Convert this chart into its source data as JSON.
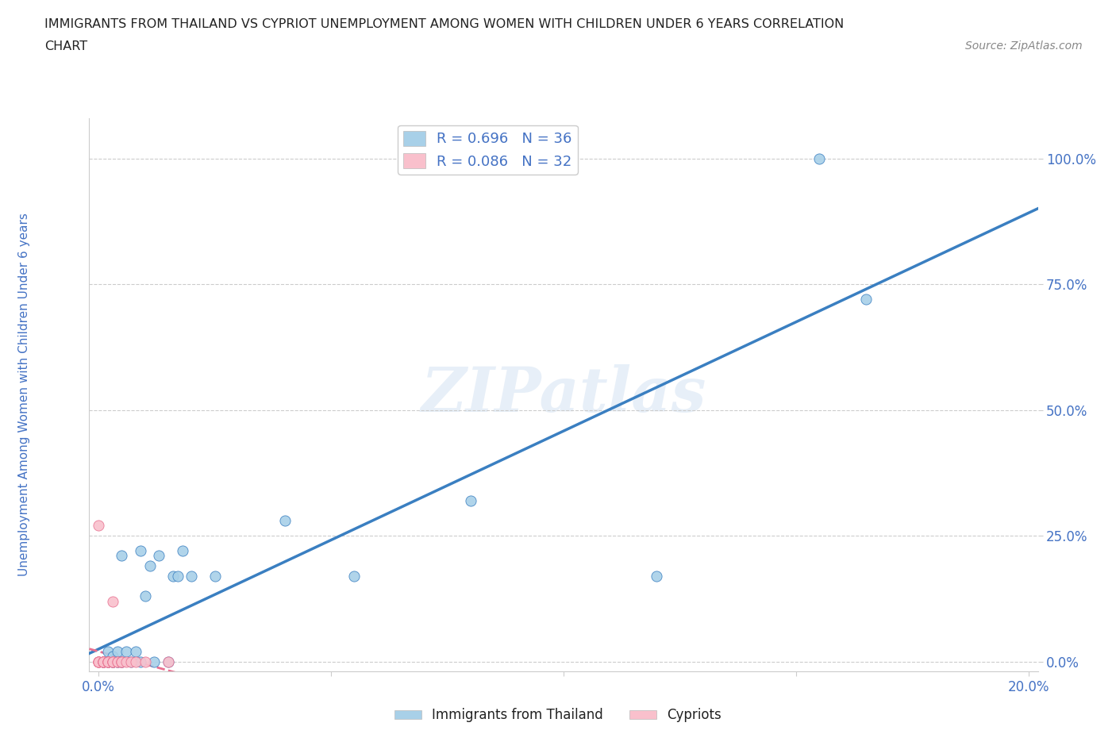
{
  "title_line1": "IMMIGRANTS FROM THAILAND VS CYPRIOT UNEMPLOYMENT AMONG WOMEN WITH CHILDREN UNDER 6 YEARS CORRELATION",
  "title_line2": "CHART",
  "source_text": "Source: ZipAtlas.com",
  "ylabel": "Unemployment Among Women with Children Under 6 years",
  "watermark": "ZIPatlas",
  "blue_label": "Immigrants from Thailand",
  "pink_label": "Cypriots",
  "blue_R": 0.696,
  "blue_N": 36,
  "pink_R": 0.086,
  "pink_N": 32,
  "blue_color": "#A8D0E8",
  "pink_color": "#F9C0CC",
  "blue_line_color": "#3A7FC1",
  "pink_line_color": "#E87090",
  "title_color": "#222222",
  "axis_tick_color": "#4472C4",
  "ylabel_color": "#4472C4",
  "legend_text_color": "#4472C4",
  "blue_scatter_x": [
    0.001,
    0.001,
    0.002,
    0.002,
    0.002,
    0.003,
    0.003,
    0.003,
    0.003,
    0.004,
    0.004,
    0.004,
    0.005,
    0.005,
    0.005,
    0.006,
    0.007,
    0.008,
    0.009,
    0.009,
    0.01,
    0.011,
    0.012,
    0.013,
    0.015,
    0.016,
    0.017,
    0.018,
    0.02,
    0.025,
    0.04,
    0.055,
    0.08,
    0.12,
    0.155,
    0.165
  ],
  "blue_scatter_y": [
    0.0,
    0.0,
    0.0,
    0.0,
    0.02,
    0.0,
    0.0,
    0.0,
    0.01,
    0.0,
    0.0,
    0.02,
    0.0,
    0.0,
    0.21,
    0.02,
    0.0,
    0.02,
    0.22,
    0.0,
    0.13,
    0.19,
    0.0,
    0.21,
    0.0,
    0.17,
    0.17,
    0.22,
    0.17,
    0.17,
    0.28,
    0.17,
    0.32,
    0.17,
    1.0,
    0.72
  ],
  "pink_scatter_x": [
    0.0,
    0.0,
    0.0,
    0.0,
    0.0,
    0.0,
    0.001,
    0.001,
    0.001,
    0.001,
    0.001,
    0.001,
    0.002,
    0.002,
    0.002,
    0.002,
    0.002,
    0.003,
    0.003,
    0.003,
    0.003,
    0.003,
    0.004,
    0.004,
    0.005,
    0.005,
    0.005,
    0.006,
    0.007,
    0.008,
    0.01,
    0.015
  ],
  "pink_scatter_y": [
    0.0,
    0.0,
    0.0,
    0.0,
    0.0,
    0.27,
    0.0,
    0.0,
    0.0,
    0.0,
    0.0,
    0.0,
    0.0,
    0.0,
    0.0,
    0.0,
    0.0,
    0.0,
    0.0,
    0.0,
    0.0,
    0.12,
    0.0,
    0.0,
    0.0,
    0.0,
    0.0,
    0.0,
    0.0,
    0.0,
    0.0,
    0.0
  ],
  "xlim": [
    -0.002,
    0.202
  ],
  "ylim": [
    -0.02,
    1.08
  ],
  "yticks": [
    0.0,
    0.25,
    0.5,
    0.75,
    1.0
  ],
  "ytick_labels": [
    "0.0%",
    "25.0%",
    "50.0%",
    "75.0%",
    "100.0%"
  ],
  "xticks": [
    0.0,
    0.05,
    0.1,
    0.15,
    0.2
  ],
  "xtick_labels": [
    "0.0%",
    "",
    "",
    "",
    "20.0%"
  ],
  "background_color": "#FFFFFF",
  "grid_color": "#CCCCCC"
}
